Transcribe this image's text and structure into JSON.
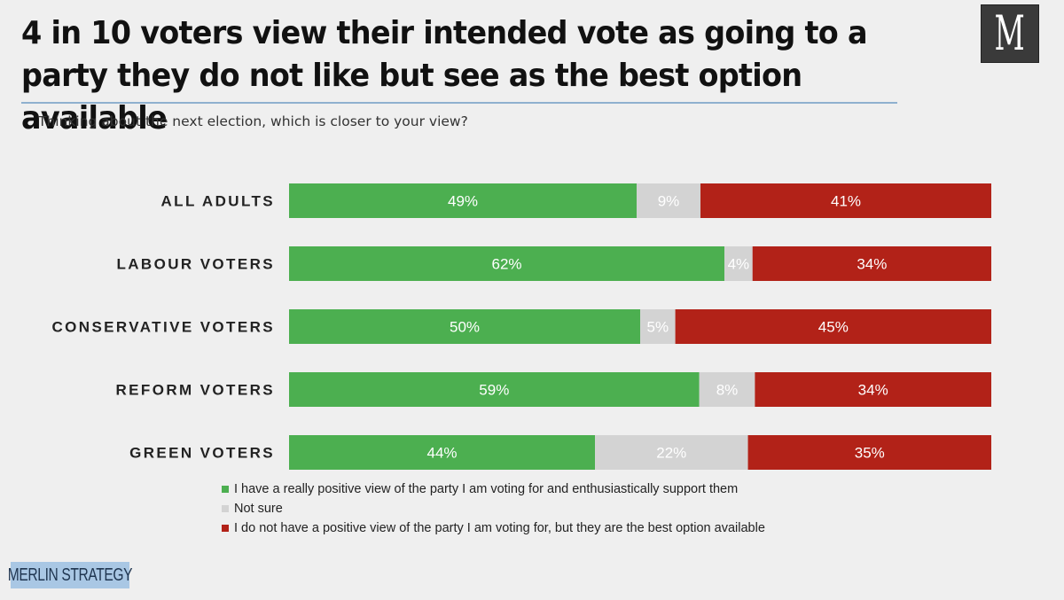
{
  "title": "4 in 10 voters view their intended vote as going to a party they do not like but see as the best option available",
  "subtitle": "Thinking about the next election, which is closer to your view?",
  "logo_letter": "M",
  "brand": "MERLIN STRATEGY",
  "colors": {
    "positive": "#4caf50",
    "not_sure": "#d3d3d3",
    "best_option": "#b22218"
  },
  "chart_data": {
    "type": "bar",
    "orientation": "horizontal",
    "stacked": true,
    "categories": [
      "ALL ADULTS",
      "LABOUR VOTERS",
      "CONSERVATIVE VOTERS",
      "REFORM VOTERS",
      "GREEN VOTERS"
    ],
    "series": [
      {
        "name": "I have a really positive view of the party I am voting for and enthusiastically support them",
        "color": "#4caf50",
        "values": [
          49,
          62,
          50,
          59,
          44
        ]
      },
      {
        "name": "Not sure",
        "color": "#d3d3d3",
        "values": [
          9,
          4,
          5,
          8,
          22
        ]
      },
      {
        "name": "I do not have a positive view of the party I am voting for, but they are the best option available",
        "color": "#b22218",
        "values": [
          41,
          34,
          45,
          34,
          35
        ]
      }
    ],
    "value_suffix": "%",
    "legend_position": "bottom",
    "grid": false
  }
}
